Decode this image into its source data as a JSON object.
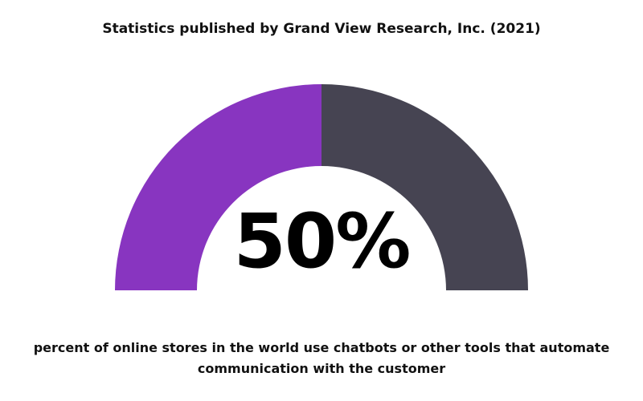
{
  "chart_data": {
    "type": "pie",
    "title": "Statistics published by Grand View Research, Inc. (2021)",
    "value_label": "50%",
    "caption": "percent of online stores in the world use chatbots or other tools that automate communication with the customer",
    "slices": [
      {
        "value": 50,
        "color": "#8835c0"
      },
      {
        "value": 50,
        "color": "#464452"
      }
    ]
  }
}
